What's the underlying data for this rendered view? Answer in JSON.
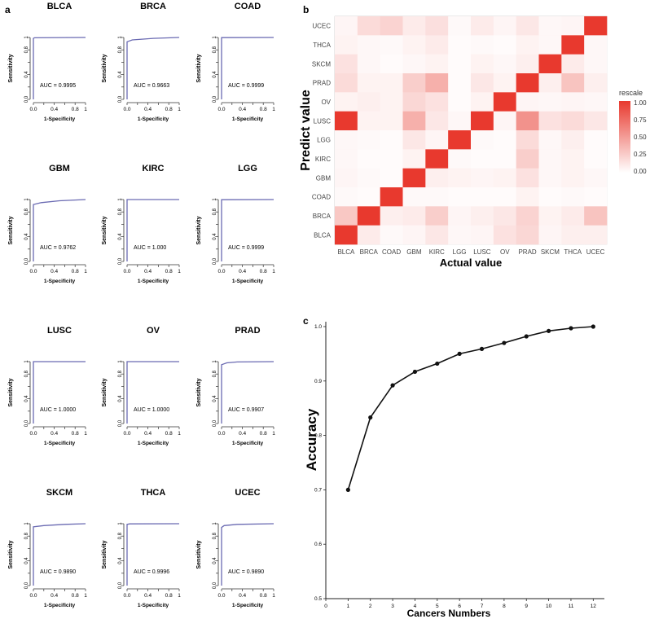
{
  "panel_labels": {
    "a": "a",
    "b": "b",
    "c": "c"
  },
  "roc": {
    "xlabel": "1-Specificity",
    "ylabel": "Sensitivity",
    "auc_prefix": "AUC = ",
    "x_ticks": [
      "0.0",
      "0.4",
      "0.8",
      "1"
    ],
    "x_ticks_2": [
      "0.2",
      "0.6"
    ],
    "y_ticks": [
      "0.0",
      "0.4",
      "0.8",
      "1"
    ],
    "y_ticks_2": [
      "0.2",
      "0.6"
    ]
  },
  "heatmap": {
    "xlabel": "Actual value",
    "ylabel": "Predict value",
    "legend_title": "rescale",
    "legend_ticks": [
      "1.00",
      "0.75",
      "0.50",
      "0.25",
      "0.00"
    ],
    "colors": {
      "low": "#ffffff",
      "high": "#e8392e"
    }
  },
  "accuracy": {
    "xlabel": "Cancers Numbers",
    "ylabel": "Accuracy",
    "x_ticks": [
      "0",
      "1",
      "2",
      "3",
      "4",
      "5",
      "6",
      "7",
      "8",
      "9",
      "10",
      "11",
      "12"
    ],
    "y_ticks": [
      "0.5",
      "0.6",
      "0.7",
      "0.8",
      "0.9",
      "1.0"
    ]
  },
  "chart_data": [
    {
      "type": "line",
      "panel": "a",
      "title": "BLCA",
      "auc": "0.9995",
      "xlabel": "1-Specificity",
      "ylabel": "Sensitivity",
      "xlim": [
        0,
        1
      ],
      "ylim": [
        0,
        1
      ],
      "x": [
        0,
        0,
        0.02,
        1
      ],
      "y": [
        0,
        0.985,
        0.995,
        1
      ]
    },
    {
      "type": "line",
      "panel": "a",
      "title": "BRCA",
      "auc": "0.9663",
      "xlabel": "1-Specificity",
      "ylabel": "Sensitivity",
      "xlim": [
        0,
        1
      ],
      "ylim": [
        0,
        1
      ],
      "x": [
        0,
        0,
        0.1,
        0.5,
        1
      ],
      "y": [
        0,
        0.93,
        0.96,
        0.985,
        1
      ]
    },
    {
      "type": "line",
      "panel": "a",
      "title": "COAD",
      "auc": "0.9999",
      "xlabel": "1-Specificity",
      "ylabel": "Sensitivity",
      "xlim": [
        0,
        1
      ],
      "ylim": [
        0,
        1
      ],
      "x": [
        0,
        0,
        1
      ],
      "y": [
        0,
        0.998,
        1
      ]
    },
    {
      "type": "line",
      "panel": "a",
      "title": "GBM",
      "auc": "0.9762",
      "xlabel": "1-Specificity",
      "ylabel": "Sensitivity",
      "xlim": [
        0,
        1
      ],
      "ylim": [
        0,
        1
      ],
      "x": [
        0,
        0,
        0.15,
        0.5,
        1
      ],
      "y": [
        0,
        0.92,
        0.95,
        0.98,
        1
      ]
    },
    {
      "type": "line",
      "panel": "a",
      "title": "KIRC",
      "auc": "1.000",
      "xlabel": "1-Specificity",
      "ylabel": "Sensitivity",
      "xlim": [
        0,
        1
      ],
      "ylim": [
        0,
        1
      ],
      "x": [
        0,
        0,
        1
      ],
      "y": [
        0,
        1,
        1
      ]
    },
    {
      "type": "line",
      "panel": "a",
      "title": "LGG",
      "auc": "0.9999",
      "xlabel": "1-Specificity",
      "ylabel": "Sensitivity",
      "xlim": [
        0,
        1
      ],
      "ylim": [
        0,
        1
      ],
      "x": [
        0,
        0,
        1
      ],
      "y": [
        0,
        0.998,
        1
      ]
    },
    {
      "type": "line",
      "panel": "a",
      "title": "LUSC",
      "auc": "1.0000",
      "xlabel": "1-Specificity",
      "ylabel": "Sensitivity",
      "xlim": [
        0,
        1
      ],
      "ylim": [
        0,
        1
      ],
      "x": [
        0,
        0,
        1
      ],
      "y": [
        0,
        1,
        1
      ]
    },
    {
      "type": "line",
      "panel": "a",
      "title": "OV",
      "auc": "1.0000",
      "xlabel": "1-Specificity",
      "ylabel": "Sensitivity",
      "xlim": [
        0,
        1
      ],
      "ylim": [
        0,
        1
      ],
      "x": [
        0,
        0,
        1
      ],
      "y": [
        0,
        1,
        1
      ]
    },
    {
      "type": "line",
      "panel": "a",
      "title": "PRAD",
      "auc": "0.9907",
      "xlabel": "1-Specificity",
      "ylabel": "Sensitivity",
      "xlim": [
        0,
        1
      ],
      "ylim": [
        0,
        1
      ],
      "x": [
        0,
        0,
        0.1,
        0.3,
        1
      ],
      "y": [
        0,
        0.95,
        0.98,
        0.995,
        1
      ]
    },
    {
      "type": "line",
      "panel": "a",
      "title": "SKCM",
      "auc": "0.9890",
      "xlabel": "1-Specificity",
      "ylabel": "Sensitivity",
      "xlim": [
        0,
        1
      ],
      "ylim": [
        0,
        1
      ],
      "x": [
        0,
        0,
        0.2,
        0.6,
        1
      ],
      "y": [
        0,
        0.95,
        0.97,
        0.99,
        1
      ]
    },
    {
      "type": "line",
      "panel": "a",
      "title": "THCA",
      "auc": "0.9996",
      "xlabel": "1-Specificity",
      "ylabel": "Sensitivity",
      "xlim": [
        0,
        1
      ],
      "ylim": [
        0,
        1
      ],
      "x": [
        0,
        0,
        0.05,
        1
      ],
      "y": [
        0,
        0.99,
        0.998,
        1
      ]
    },
    {
      "type": "line",
      "panel": "a",
      "title": "UCEC",
      "auc": "0.9890",
      "xlabel": "1-Specificity",
      "ylabel": "Sensitivity",
      "xlim": [
        0,
        1
      ],
      "ylim": [
        0,
        1
      ],
      "x": [
        0,
        0,
        0.05,
        0.3,
        1
      ],
      "y": [
        0,
        0.94,
        0.97,
        0.99,
        1
      ]
    },
    {
      "type": "heatmap",
      "panel": "b",
      "xlabel": "Actual value",
      "ylabel": "Predict value",
      "x_categories": [
        "BLCA",
        "BRCA",
        "COAD",
        "GBM",
        "KIRC",
        "LGG",
        "LUSC",
        "OV",
        "PRAD",
        "SKCM",
        "THCA",
        "UCEC"
      ],
      "y_categories": [
        "UCEC",
        "THCA",
        "SKCM",
        "PRAD",
        "OV",
        "LUSC",
        "LGG",
        "KIRC",
        "GBM",
        "COAD",
        "BRCA",
        "BLCA"
      ],
      "legend_title": "rescale",
      "value_range": [
        0,
        1
      ],
      "values": [
        [
          0.05,
          0.18,
          0.22,
          0.1,
          0.16,
          0.03,
          0.1,
          0.05,
          0.12,
          0.04,
          0.05,
          1.0
        ],
        [
          0.06,
          0.04,
          0.03,
          0.06,
          0.1,
          0.02,
          0.03,
          0.02,
          0.06,
          0.04,
          1.0,
          0.04
        ],
        [
          0.15,
          0.04,
          0.02,
          0.04,
          0.06,
          0.02,
          0.06,
          0.04,
          0.08,
          1.0,
          0.1,
          0.04
        ],
        [
          0.18,
          0.06,
          0.06,
          0.25,
          0.4,
          0.02,
          0.12,
          0.06,
          1.0,
          0.08,
          0.3,
          0.08
        ],
        [
          0.06,
          0.08,
          0.06,
          0.2,
          0.15,
          0.02,
          0.06,
          1.0,
          0.05,
          0.04,
          0.05,
          0.04
        ],
        [
          1.0,
          0.06,
          0.06,
          0.4,
          0.12,
          0.04,
          1.0,
          0.05,
          0.55,
          0.15,
          0.18,
          0.12
        ],
        [
          0.04,
          0.03,
          0.02,
          0.12,
          0.05,
          1.0,
          0.03,
          0.02,
          0.18,
          0.04,
          0.08,
          0.02
        ],
        [
          0.04,
          0.02,
          0.02,
          0.06,
          1.0,
          0.03,
          0.02,
          0.02,
          0.25,
          0.04,
          0.06,
          0.02
        ],
        [
          0.05,
          0.03,
          0.02,
          1.0,
          0.08,
          0.06,
          0.05,
          0.06,
          0.15,
          0.04,
          0.06,
          0.04
        ],
        [
          0.03,
          0.02,
          1.0,
          0.03,
          0.03,
          0.02,
          0.02,
          0.02,
          0.06,
          0.02,
          0.03,
          0.02
        ],
        [
          0.28,
          1.0,
          0.08,
          0.1,
          0.25,
          0.05,
          0.08,
          0.12,
          0.22,
          0.06,
          0.1,
          0.3
        ],
        [
          1.0,
          0.1,
          0.03,
          0.05,
          0.12,
          0.04,
          0.05,
          0.15,
          0.2,
          0.05,
          0.08,
          0.08
        ]
      ]
    },
    {
      "type": "line",
      "panel": "c",
      "xlabel": "Cancers Numbers",
      "ylabel": "Accuracy",
      "xlim": [
        0,
        12.5
      ],
      "ylim": [
        0.5,
        1.0
      ],
      "x": [
        1,
        2,
        3,
        4,
        5,
        6,
        7,
        8,
        9,
        10,
        11,
        12
      ],
      "y": [
        0.7,
        0.833,
        0.892,
        0.917,
        0.932,
        0.95,
        0.959,
        0.97,
        0.982,
        0.992,
        0.997,
        1.0
      ]
    }
  ]
}
